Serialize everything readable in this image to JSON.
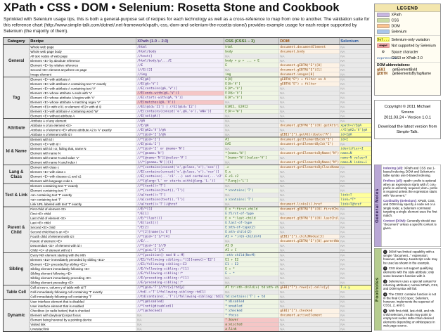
{
  "header": {
    "title": "XPath • CSS • DOM • Selenium: Rosetta Stone and Cookbook",
    "subtitle": "Sprinkled with Selenium usage tips, this is both a general-purpose set of recipes for each technology as well as a cross-reference to map from one to another. The validation suite for this reference chart (http://www.simple-talk.com/dotnet/.net-framework/xpath,-css,-dom-and-selenium-the-rosetta-stone/) provides example usage for each recipe supported by Selenium (the majority of them)."
  },
  "table": {
    "columns": [
      "Category",
      "Recipe",
      "XPath (1.0 – 2.0)",
      "CSS (CSS1 – 3)",
      "DOM",
      "Selenium"
    ],
    "groups": [
      {
        "name": "General",
        "rows": [
          [
            "Whole web page",
            "/html",
            "html",
            "document.documentElement",
            "NA"
          ],
          [
            "Whole web page body",
            "/html/body",
            "body",
            "document.body",
            "NA"
          ],
          [
            "All text nodes of web page",
            "//text()",
            "NA",
            "NA",
            "NA"
          ],
          [
            "Element <E> by absolute reference",
            "/html/body/p/.../E",
            "body > p > ... > E",
            "NA",
            "NA"
          ],
          [
            "Element <E> by relative reference",
            "//E",
            "E",
            "document.gEBTN(\"E\")[0]",
            "NA"
          ],
          [
            "Second <E> element anywhere on page",
            "(//E)[2]",
            "NA",
            "document.gEBTN(\"E\")[1]",
            "NA"
          ],
          [
            "Image element",
            "//img",
            "img",
            "document.images[0]",
            "NA"
          ]
        ]
      },
      {
        "name": "Tag",
        "rows": [
          [
            "Element <E> with attribute A",
            "//E[@A]",
            "E[A]",
            "gEBTN(\"E\") + filter on A",
            "NA"
          ],
          [
            "Element <E> with attribute A containing text 'V' exactly",
            "//E[@A='V']",
            "E[A='V']",
            "gEBTN(\"E\") + filter",
            "NA"
          ],
          [
            "Element <E> with attribute A containing text 'V'",
            "//E[contains(@A,'V')]",
            "E[A*='V']",
            "NA",
            "NA"
          ],
          [
            "Element <E> whose attribute A ends with 'V'",
            {
              "t": "//E[ends-with(@A,'V')]",
              "c": "pink"
            },
            "E[A$='V']",
            "NA",
            "NA"
          ],
          [
            "Element <E> whose attribute A begins with 'V'",
            "//E[starts-with(@A,'V')]",
            "E[A^='V']",
            "NA",
            "NA"
          ],
          [
            "Element <E> whose attribute A matching regex 'V'",
            {
              "t": "//E[matches(@A,'V')]",
              "c": "pink"
            },
            "NA",
            "NA",
            "NA"
          ],
          [
            "Element <E1> with id I1 or element <E2> with id I2",
            "//E1[@id='I1'] | //E2[@id='I2']",
            "E1#I1, E2#I2",
            "NA",
            "NA"
          ],
          [
            "Element <E> with attribute A containing word 'W'",
            "//E[contains(concat('⊙',@A,'⊙'),'⊙W⊙')]",
            "E[A~='W']",
            "NA",
            "NA"
          ],
          [
            "Element <E> without attribute A",
            "//E[not(@A)]",
            "NA",
            "NA",
            "NA"
          ]
        ]
      },
      {
        "name": "Attribute",
        "rows": [
          [
            "Attribute A of any element",
            "//@A",
            "NA",
            "NA",
            "NA"
          ],
          [
            "Attribute A of an element <E>",
            "//E/@A",
            "NA",
            "document.gEBTN(\"E\")[0].getAttribute(\"A\")",
            {
              "t": "xpath=//E@A",
              "c": "yel"
            }
          ],
          [
            "Attribute A of element <E> where attribute A2 is 'V' exactly",
            "//E[@A2='V']/@A",
            "NA",
            "NA",
            {
              "t": "//E[@A2='V']@A",
              "c": "yel"
            }
          ],
          [
            "Attribute A of element with id I",
            "//*[@id='I']/@A",
            "NA",
            "gEBI(\"I\").getAttribute(\"A\")",
            {
              "t": "id=I@A",
              "c": "yel"
            }
          ]
        ]
      },
      {
        "name": "Id & Name",
        "rows": [
          [
            "Element with id I",
            "//*[@id='I']",
            "#I",
            "document.getElementById(\"I\")",
            {
              "t": "id=I",
              "c": "yel"
            }
          ],
          [
            "Element <E> with id I",
            "//E[@id='I']",
            "E#I",
            "document.getElementById(\"I\")",
            "NA"
          ],
          [
            "Element with id I or, failing that, name N",
            "//*[@id='I' or @name='N']",
            "NA",
            "NA",
            {
              "t": "identifier=I",
              "c": "yel"
            }
          ],
          [
            "Element with name N",
            "//*[@name='N']",
            "*[name='N']",
            "document.getElementsByName(\"N\")[0]",
            {
              "t": "name=N",
              "c": "yel"
            }
          ],
          [
            "Element with name N and value 'V'",
            "//*[@name='N'][@value='V']",
            "*[name='N'][value='V']",
            "NA",
            {
              "t": "name=N value=V",
              "c": "yel"
            }
          ],
          [
            "Element with name N and index i",
            "(//*[@name='N'])[i]",
            "NA",
            "document.getElementsByName(\"N\")[i]",
            {
              "t": "name=N index=i",
              "c": "yel"
            }
          ]
        ]
      },
      {
        "name": "Lang & Class",
        "rows": [
          [
            "Element with class c",
            "//*[contains(concat('⊙',@class,'⊙'),'⊙c⊙')]",
            ".c",
            "document.getElementsByClassName(\"c\")[0]",
            "NA"
          ],
          [
            "Element <E> with class c",
            "//E[contains(concat('⊙',@class,'⊙'),'⊙c⊙')]",
            "E.c",
            "NA",
            "NA"
          ],
          [
            "Element <E> with classes c1 and c2",
            "//E[contains(...'c1'...) and contains(...'c2'...)]",
            "E.c1.c2",
            "NA",
            "NA"
          ],
          [
            "Element with language code L",
            "//*[@lang='L' or starts-with(@lang,'L-')]",
            "*[lang|='L']",
            "NA",
            "NA"
          ]
        ]
      },
      {
        "name": "Text & Link",
        "rows": [
          [
            "Element containing text 'T' exactly",
            "//*[text()='T']",
            "NA",
            "NA",
            "NA"
          ],
          [
            "Element containing text 'T'",
            "//*[contains(text(),'T')]",
            {
              "t": "*:contains('T')",
              "c": "blue"
            },
            "NA",
            "NA"
          ],
          [
            "<a> containing text 'T' exactly",
            "//a[text()='T']",
            "NA",
            "NA",
            {
              "t": "link=T",
              "c": "yel"
            }
          ],
          [
            "<a> containing text 'T'",
            "//a[contains(text(),'T')]",
            {
              "t": "a:contains('T')",
              "c": "blue"
            },
            "NA",
            {
              "t": "link=*T*",
              "c": "yel"
            }
          ],
          [
            "Link URL labeled with text 'T' exactly",
            "//a[text()='T']/@href",
            "NA",
            "document.links[i].href",
            {
              "t": "link=T@href",
              "c": "yel"
            }
          ]
        ]
      },
      {
        "name": "Parent & Child",
        "rows": [
          [
            "First child of element <E>",
            "//E/*[1]",
            "E > *:first-child",
            "document.gEBTN(\"E\")[0].firstChild",
            "NA"
          ],
          [
            "First <E> child",
            "*/E[1]",
            {
              "t": "E:first-of-type",
              "c": "blue"
            },
            "NA",
            "NA"
          ],
          [
            "Last child of element <E>",
            "//E/*[last()]",
            "E > *:last-child",
            "document.gEBTN(\"E\")[0].lastChild",
            "NA"
          ],
          [
            "Last <E> child",
            "*/E[last()]",
            {
              "t": "E:last-of-type",
              "c": "blue"
            },
            "NA",
            "NA"
          ],
          [
            "Second <E> child",
            "*/E[2]",
            {
              "t": "E:nth-of-type(2)",
              "c": "blue"
            },
            "NA",
            "NA"
          ],
          [
            "Second child that is an <E>",
            "*/*[2][name()='E']",
            {
              "t": "E:nth-child(2)",
              "c": "blue"
            },
            "NA",
            "NA"
          ],
          [
            "Fourth child of element with id I",
            "//*[@id='I']/*[4]",
            {
              "t": "#I > *:nth-child(4)",
              "c": "blue"
            },
            "gEBI(\"I\").childNodes[3]",
            "NA"
          ],
          [
            "Parent of element <E>",
            "//E/..",
            "NA",
            "document.gEBTN(\"E\")[0].parentNode",
            "NA"
          ],
          [
            "Descendant <D> of element with id I",
            "//*[@id='I']//D",
            "#I D",
            "NA",
            "NA"
          ],
          [
            "Child <C> of element with id I",
            "//*[@id='I']/C",
            "#I > C",
            "NA",
            "NA"
          ]
        ]
      },
      {
        "name": "Sibling",
        "rows": [
          [
            "Every Nth element starting with the Mth",
            "//*[position() mod N = M]",
            {
              "t": ":nth-child(Nn+M)",
              "c": "blue"
            },
            "NA",
            "NA"
          ],
          [
            "Element <E2> immediately preceded by sibling <E1>",
            "//E1/following-sibling::*[1][name()='E2']",
            "E1 + E2",
            "NA",
            "NA"
          ],
          [
            "Element <E2> preceded by sibling <E1>",
            "//E1/following-sibling::E2",
            {
              "t": "E1 ~ E2",
              "c": "blue"
            },
            "NA",
            "NA"
          ],
          [
            "Sibling element immediately following <E>",
            "//E/following-sibling::*[1]",
            "E + *",
            "NA",
            "NA"
          ],
          [
            "Sibling element following <E>",
            "//E/following-sibling::*",
            {
              "t": "E ~ *",
              "c": "blue"
            },
            "NA",
            "NA"
          ],
          [
            "Sibling element immediately preceding <E>",
            "//E/preceding-sibling::*[1]",
            "NA",
            "NA",
            "NA"
          ],
          [
            "Sibling element preceding <E>",
            "//E/preceding-sibling::*",
            "NA",
            "NA",
            "NA"
          ]
        ]
      },
      {
        "name": "Table Cell",
        "rows": [
          [
            "Cell at row x, column y of table with id T",
            "//*[@id='T']//tr[x]/td[y]",
            "#T tr:nth-child(x) td:nth-child(y)",
            "gEBI(\"T\").rows[x].cells[y]",
            {
              "t": "T.x.y",
              "c": "yel"
            }
          ],
          [
            "Cell immediately following cell containing 'T' exactly",
            "//td[.='T']/following-sibling::td[1]",
            "NA",
            "NA",
            "NA"
          ],
          [
            "Cell immediately following cell containing 'T'",
            "//td[contains(.,'T')]/following-sibling::td[1]",
            {
              "t": "td:contains('T') + td",
              "c": "blue"
            },
            "NA",
            "NA"
          ]
        ]
      },
      {
        "name": "Dynamic",
        "rows": [
          [
            "User interface element that is disabled",
            "//*[@disabled]",
            {
              "t": "*:disabled",
              "c": "blue"
            },
            "NA",
            "NA"
          ],
          [
            "User interface element that is enabled",
            "//*[not(@disabled)]",
            {
              "t": "*:enabled",
              "c": "blue"
            },
            "NA",
            "NA"
          ],
          [
            "Checkbox (or radio button) that is checked",
            "//*[@checked]",
            {
              "t": "*:checked",
              "c": "blue"
            },
            "gEBI(\"I\").checked",
            "NA"
          ],
          [
            "Element with (keyboard) input focus",
            "NA",
            {
              "t": "*:focus",
              "c": "blue"
            },
            "document.activeElement",
            "NA"
          ],
          [
            "Element being hovered by a pointing device",
            "NA",
            {
              "t": "*:hover",
              "c": "pink"
            },
            "NA",
            "NA"
          ],
          [
            "Visited link",
            "NA",
            {
              "t": "a:visited",
              "c": "pink"
            },
            "NA",
            "NA"
          ],
          [
            "Unvisited link",
            "NA",
            {
              "t": "a:link",
              "c": "pink"
            },
            "NA",
            "NA"
          ]
        ]
      }
    ]
  },
  "legend": {
    "title": "LEGEND",
    "tech": [
      {
        "label": "XPath",
        "color": "#c9b7e2"
      },
      {
        "label": "CSS",
        "color": "#c9dba3"
      },
      {
        "label": "DOM",
        "color": "#fbc490"
      },
      {
        "label": "Selenium",
        "color": "#a9c6ea"
      }
    ],
    "markers": [
      {
        "sample": "Sel...",
        "style": "yellow",
        "label": "Selenium-only variation"
      },
      {
        "sample": "expr",
        "style": "pink",
        "label": "Not supported by Selenium"
      },
      {
        "sample": "⊙",
        "style": "plain",
        "label": "Space character"
      },
      {
        "sample": "expression",
        "style": "blue",
        "label": "CSS3 or XPath 2.0"
      }
    ],
    "dom_abbr": {
      "title": "DOM abbreviations:",
      "items": [
        {
          "abbr": "gEBI",
          "full": "getElementById"
        },
        {
          "abbr": "gEBTN",
          "full": "getElementsByTagName"
        }
      ]
    }
  },
  "copyright": {
    "line1": "Copyright © 2011 Michael Sorens",
    "line2": "2011.03.24 • Version 1.0.1",
    "line3": "Download the latest version from Simple-Talk."
  },
  "general_notes": {
    "title": "General Notes",
    "items": [
      {
        "lead": "Indexing (all):",
        "text": "XPath and CSS use 1-based indexing; DOM and Selenium's table syntax use 0-based indexing."
      },
      {
        "lead": "Prefixes (all):",
        "text": "xpath= prefix is optional when an expression starts with //; css= prefix is uniformly required; dom= prefix is required unless the expression starts with \"document.\""
      },
      {
        "lead": "Cardinality (Selenium):",
        "text": "XPath, CSS, and DOM may specify a node set or a single node; a Selenium command targeting a single element uses the first match."
      },
      {
        "lead": "Context (DOM):",
        "text": "Generally should use \"document\" unless a specific context is given."
      }
    ]
  },
  "footnotes": {
    "title": "Footnotes",
    "items": [
      "DOM has limited capability with a simple \"document...\" expression; however, arbitrary JavaScript code may be used as shown in the example.",
      "CSS does not support qualifying elements with the style attribute; only some browsers function with it.",
      "Selenium uses a special syntax for returning attributes; normal XPath, CSS, and DOM syntax will fail.",
      "The CSS3 :contains function is not in the final CSS3 spec; Selenium, however, implements the superset of CSS1, 2, and 3.",
      "With first-child, last-child, and nth-child selectors, results may point to empty text nodes rather than desired elements depending on whitespace in web page source."
    ]
  }
}
